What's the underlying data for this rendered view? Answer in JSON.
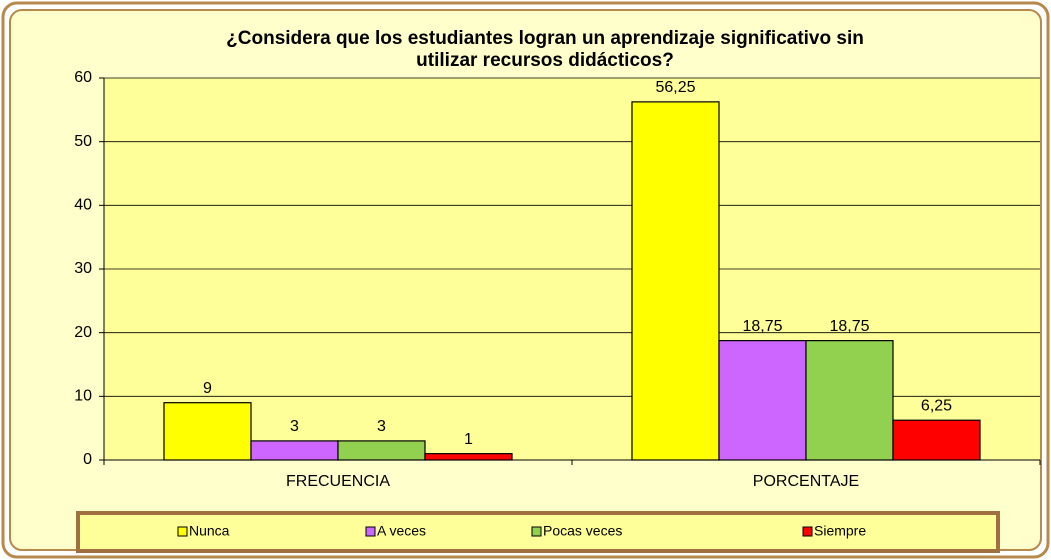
{
  "chart_data": {
    "type": "bar",
    "title": "¿Considera que los estudiantes logran un aprendizaje significativo sin utilizar recursos didácticos?",
    "categories": [
      "FRECUENCIA",
      "PORCENTAJE"
    ],
    "series": [
      {
        "name": "Nunca",
        "color": "#ffff00",
        "values": [
          9,
          56.25
        ],
        "value_labels": [
          "9",
          "56,25"
        ]
      },
      {
        "name": "A veces",
        "color": "#cc66ff",
        "values": [
          3,
          18.75
        ],
        "value_labels": [
          "3",
          "18,75"
        ]
      },
      {
        "name": "Pocas veces",
        "color": "#92d050",
        "values": [
          3,
          18.75
        ],
        "value_labels": [
          "3",
          "18,75"
        ]
      },
      {
        "name": "Siempre",
        "color": "#ff0000",
        "values": [
          1,
          6.25
        ],
        "value_labels": [
          "1",
          "6,25"
        ]
      }
    ],
    "ylim": [
      0,
      60
    ],
    "yticks": [
      0,
      10,
      20,
      30,
      40,
      50,
      60
    ],
    "grid": true,
    "legend": "bottom"
  }
}
